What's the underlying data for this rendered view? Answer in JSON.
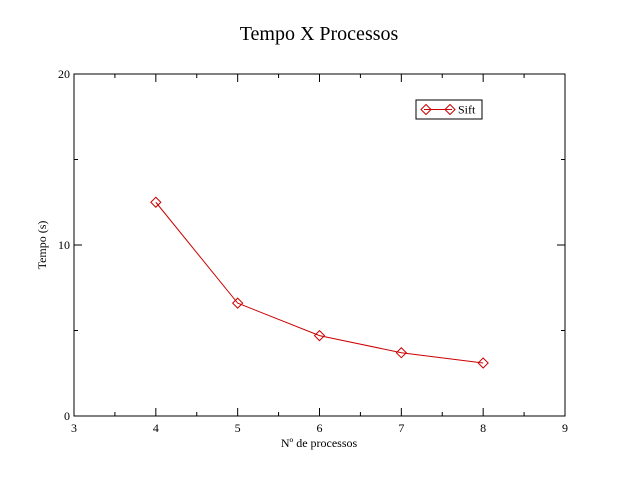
{
  "chart_data": {
    "type": "line",
    "title": "Tempo X Processos",
    "xlabel": "Nº de processos",
    "ylabel": "Tempo (s)",
    "xlim": [
      3,
      9
    ],
    "ylim": [
      0,
      20
    ],
    "x_ticks": [
      3,
      4,
      5,
      6,
      7,
      8,
      9
    ],
    "x_tick_labels": [
      "3",
      "4",
      "5",
      "6",
      "7",
      "8",
      "9"
    ],
    "y_ticks": [
      0,
      10,
      20
    ],
    "y_tick_labels": [
      "0",
      "10",
      "20"
    ],
    "x_minor_ticks": [
      3.5,
      4.5,
      5.5,
      6.5,
      7.5,
      8.5
    ],
    "y_minor_ticks": [
      5,
      15
    ],
    "grid": false,
    "legend_position": "top-right",
    "series": [
      {
        "name": "Sift",
        "color": "#cc0000",
        "marker": "diamond",
        "x": [
          4,
          5,
          6,
          7,
          8
        ],
        "y": [
          12.5,
          6.6,
          4.7,
          3.7,
          3.1
        ]
      }
    ]
  }
}
